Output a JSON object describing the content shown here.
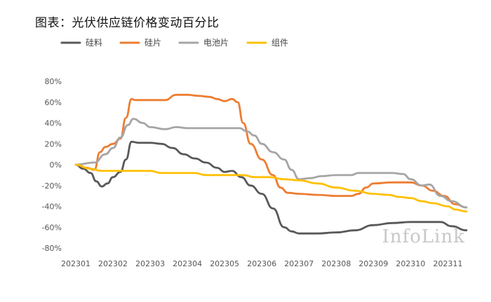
{
  "chart_data": {
    "type": "line",
    "title": "图表：光伏供应链价格变动百分比",
    "watermark": "InfoLink",
    "xlabel": "",
    "ylabel": "",
    "ylim": [
      -80,
      80
    ],
    "y_ticks": [
      "80%",
      "60%",
      "40%",
      "20%",
      "0%",
      "-20%",
      "-40%",
      "-60%",
      "-80%"
    ],
    "y_tick_values": [
      80,
      60,
      40,
      20,
      0,
      -20,
      -40,
      -60,
      -80
    ],
    "x_ticks": [
      "202301",
      "202302",
      "202303",
      "202304",
      "202305",
      "202306",
      "202307",
      "202308",
      "202309",
      "202310",
      "202311"
    ],
    "x_range": [
      0,
      10.5
    ],
    "grid": false,
    "legend_position": "top-left",
    "series": [
      {
        "name": "硅料",
        "color": "#595959",
        "points": [
          [
            0,
            0
          ],
          [
            0.2,
            -4
          ],
          [
            0.4,
            -8
          ],
          [
            0.55,
            -16
          ],
          [
            0.7,
            -21
          ],
          [
            0.85,
            -18
          ],
          [
            1.0,
            -12
          ],
          [
            1.2,
            -7
          ],
          [
            1.35,
            5
          ],
          [
            1.5,
            22
          ],
          [
            1.7,
            21
          ],
          [
            2.0,
            21
          ],
          [
            2.3,
            20
          ],
          [
            2.6,
            16
          ],
          [
            2.9,
            10
          ],
          [
            3.2,
            6
          ],
          [
            3.5,
            2
          ],
          [
            3.8,
            -3
          ],
          [
            4.0,
            -7
          ],
          [
            4.2,
            -6
          ],
          [
            4.45,
            -12
          ],
          [
            4.7,
            -20
          ],
          [
            5.0,
            -28
          ],
          [
            5.3,
            -42
          ],
          [
            5.6,
            -60
          ],
          [
            5.8,
            -64
          ],
          [
            6.0,
            -66
          ],
          [
            6.5,
            -66
          ],
          [
            7.0,
            -65
          ],
          [
            7.5,
            -63
          ],
          [
            8.0,
            -58
          ],
          [
            8.5,
            -56
          ],
          [
            9.0,
            -55
          ],
          [
            9.5,
            -55
          ],
          [
            9.8,
            -55
          ],
          [
            10.1,
            -59
          ],
          [
            10.5,
            -63
          ]
        ]
      },
      {
        "name": "硅片",
        "color": "#ED7D31",
        "points": [
          [
            0,
            0
          ],
          [
            0.3,
            -3
          ],
          [
            0.5,
            -5
          ],
          [
            0.65,
            12
          ],
          [
            0.8,
            17
          ],
          [
            1.0,
            20
          ],
          [
            1.2,
            25
          ],
          [
            1.35,
            45
          ],
          [
            1.5,
            63
          ],
          [
            1.6,
            62
          ],
          [
            2.0,
            62
          ],
          [
            2.4,
            62
          ],
          [
            2.7,
            67
          ],
          [
            3.0,
            67
          ],
          [
            3.3,
            66
          ],
          [
            3.6,
            65
          ],
          [
            3.8,
            63
          ],
          [
            4.0,
            61
          ],
          [
            4.2,
            63
          ],
          [
            4.35,
            60
          ],
          [
            4.5,
            40
          ],
          [
            4.7,
            20
          ],
          [
            5.0,
            5
          ],
          [
            5.3,
            -10
          ],
          [
            5.5,
            -22
          ],
          [
            5.7,
            -27
          ],
          [
            6.0,
            -28
          ],
          [
            6.5,
            -29
          ],
          [
            7.0,
            -30
          ],
          [
            7.4,
            -30
          ],
          [
            7.6,
            -28
          ],
          [
            7.8,
            -22
          ],
          [
            8.0,
            -18
          ],
          [
            8.5,
            -17
          ],
          [
            9.0,
            -17
          ],
          [
            9.3,
            -20
          ],
          [
            9.6,
            -25
          ],
          [
            9.9,
            -30
          ],
          [
            10.2,
            -38
          ],
          [
            10.5,
            -41
          ]
        ]
      },
      {
        "name": "电池片",
        "color": "#A5A5A5",
        "points": [
          [
            0,
            0
          ],
          [
            0.5,
            2
          ],
          [
            0.8,
            10
          ],
          [
            1.0,
            16
          ],
          [
            1.2,
            26
          ],
          [
            1.4,
            38
          ],
          [
            1.55,
            44
          ],
          [
            1.8,
            40
          ],
          [
            2.0,
            36
          ],
          [
            2.4,
            34
          ],
          [
            2.7,
            36
          ],
          [
            3.0,
            35
          ],
          [
            3.5,
            35
          ],
          [
            4.0,
            35
          ],
          [
            4.4,
            35
          ],
          [
            4.6,
            32
          ],
          [
            4.8,
            28
          ],
          [
            5.0,
            20
          ],
          [
            5.3,
            12
          ],
          [
            5.6,
            5
          ],
          [
            5.8,
            -5
          ],
          [
            6.0,
            -14
          ],
          [
            6.3,
            -13
          ],
          [
            6.6,
            -11
          ],
          [
            7.0,
            -10
          ],
          [
            7.4,
            -10
          ],
          [
            7.6,
            -8
          ],
          [
            8.0,
            -8
          ],
          [
            8.5,
            -8
          ],
          [
            8.8,
            -9
          ],
          [
            9.0,
            -14
          ],
          [
            9.3,
            -20
          ],
          [
            9.5,
            -19
          ],
          [
            9.8,
            -30
          ],
          [
            10.1,
            -35
          ],
          [
            10.5,
            -41
          ]
        ]
      },
      {
        "name": "组件",
        "color": "#FFC000",
        "points": [
          [
            0,
            0
          ],
          [
            0.4,
            -4
          ],
          [
            0.7,
            -6
          ],
          [
            1.0,
            -6
          ],
          [
            1.5,
            -6
          ],
          [
            2.0,
            -6
          ],
          [
            2.3,
            -8
          ],
          [
            2.8,
            -8
          ],
          [
            3.2,
            -8
          ],
          [
            3.5,
            -10
          ],
          [
            4.0,
            -10
          ],
          [
            4.5,
            -10
          ],
          [
            4.8,
            -12
          ],
          [
            5.2,
            -12
          ],
          [
            5.6,
            -14
          ],
          [
            6.0,
            -15
          ],
          [
            6.5,
            -18
          ],
          [
            7.0,
            -22
          ],
          [
            7.5,
            -25
          ],
          [
            8.0,
            -28
          ],
          [
            8.4,
            -29
          ],
          [
            8.7,
            -31
          ],
          [
            9.0,
            -32
          ],
          [
            9.3,
            -35
          ],
          [
            9.6,
            -37
          ],
          [
            10.0,
            -40
          ],
          [
            10.2,
            -43
          ],
          [
            10.5,
            -45
          ]
        ]
      }
    ]
  }
}
